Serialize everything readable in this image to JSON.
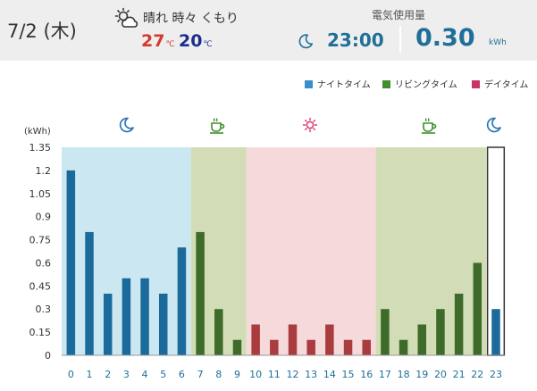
{
  "header": {
    "date": "7/2 (木)",
    "weather": {
      "icon": "sun-cloud-icon",
      "text": "晴れ 時々 くもり",
      "temp_high": "27",
      "temp_low": "20",
      "temp_unit": "℃"
    },
    "usage_label": "電気使用量",
    "time_icon": "moon-icon",
    "time": "23:00",
    "kwh": "0.30",
    "kwh_unit": "kWh"
  },
  "legend": [
    {
      "label": "ナイトタイム",
      "color": "#3a8fc8"
    },
    {
      "label": "リビングタイム",
      "color": "#3f8f2f"
    },
    {
      "label": "デイタイム",
      "color": "#c8336a"
    }
  ],
  "chart_data": {
    "type": "bar",
    "ylabel": "(kWh)",
    "ylim": [
      0,
      1.35
    ],
    "yticks": [
      "0",
      "0.15",
      "0.3",
      "0.45",
      "0.6",
      "0.75",
      "0.9",
      "1.05",
      "1.2",
      "1.35"
    ],
    "categories": [
      "0",
      "1",
      "2",
      "3",
      "4",
      "5",
      "6",
      "7",
      "8",
      "9",
      "10",
      "11",
      "12",
      "13",
      "14",
      "15",
      "16",
      "17",
      "18",
      "19",
      "20",
      "21",
      "22",
      "23"
    ],
    "values": [
      1.2,
      0.8,
      0.4,
      0.5,
      0.5,
      0.4,
      0.7,
      0.8,
      0.3,
      0.1,
      0.2,
      0.1,
      0.2,
      0.1,
      0.2,
      0.1,
      0.1,
      0.3,
      0.1,
      0.2,
      0.3,
      0.4,
      0.6,
      0.3
    ],
    "bar_colors": {
      "night": "#1a6b9c",
      "living": "#3e6b2a",
      "day": "#a83c3e"
    },
    "periods": [
      {
        "type": "night",
        "from": 0,
        "to": 6,
        "bg": "#cbe7f1",
        "icon": "moon-icon"
      },
      {
        "type": "living",
        "from": 7,
        "to": 9,
        "bg": "#d2ddb7",
        "icon": "tea-cup-icon"
      },
      {
        "type": "day",
        "from": 10,
        "to": 16,
        "bg": "#f6dadb",
        "icon": "sun-icon"
      },
      {
        "type": "living",
        "from": 17,
        "to": 22,
        "bg": "#d2ddb7",
        "icon": "tea-cup-icon"
      },
      {
        "type": "night",
        "from": 23,
        "to": 23,
        "bg": "#ffffff",
        "icon": "moon-icon"
      }
    ],
    "highlight_hour": 23,
    "xtick_color": "#1f6f98"
  }
}
